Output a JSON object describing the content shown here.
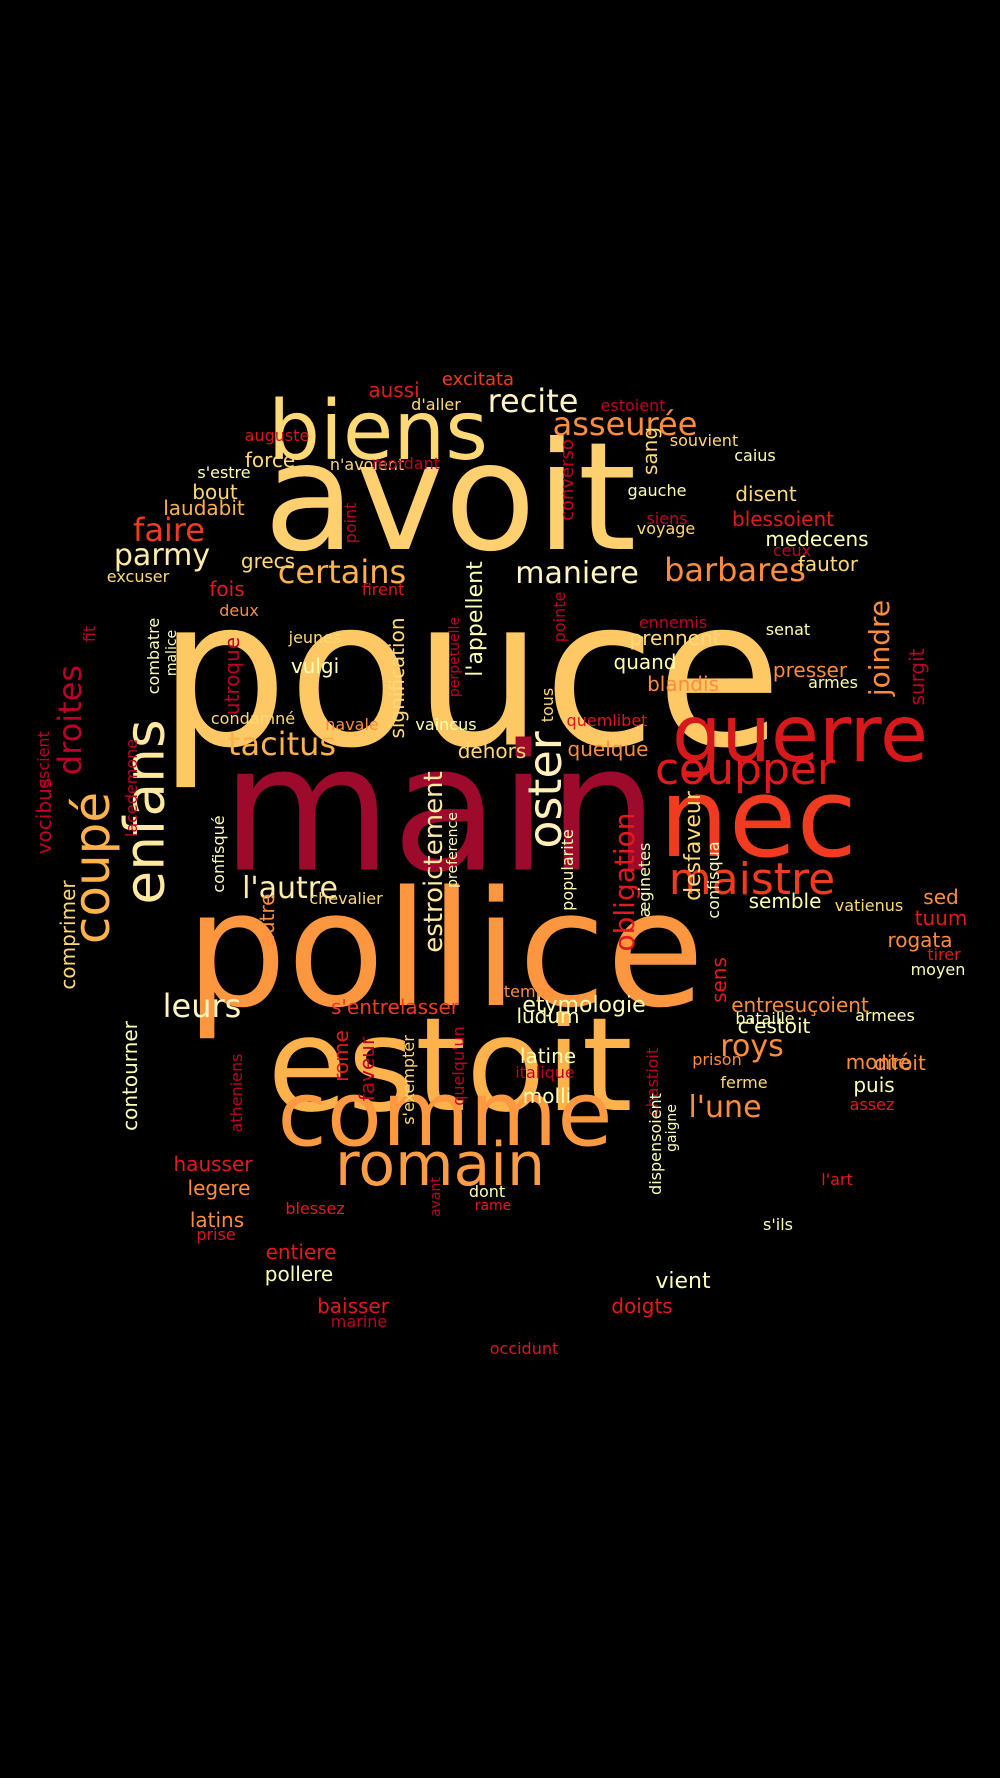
{
  "palette": {
    "dark_red": "#9e0a2b",
    "red": "#d7191c",
    "orange_red": "#f03b20",
    "orange": "#fd8d3c",
    "light_orange": "#feb24c",
    "yellow": "#fed976",
    "pale": "#ffffb2"
  },
  "words": [
    {
      "text": "pouce",
      "color": "#fec965"
    },
    {
      "text": "main",
      "color": "#9e0a2b"
    },
    {
      "text": "pollice",
      "color": "#fd973f"
    },
    {
      "text": "avoit",
      "color": "#fed06f"
    },
    {
      "text": "estoit",
      "color": "#feb24c"
    },
    {
      "text": "comme",
      "color": "#fd9a41"
    },
    {
      "text": "biens",
      "color": "#fed976"
    },
    {
      "text": "nec",
      "color": "#f03b20"
    },
    {
      "text": "guerre",
      "color": "#d7191c"
    },
    {
      "text": "romain",
      "color": "#fd9d43"
    },
    {
      "text": "enfans",
      "color": "#ffe8a0"
    },
    {
      "text": "coupper",
      "color": "#e31a1c"
    },
    {
      "text": "coupé",
      "color": "#feb24c"
    },
    {
      "text": "maistre",
      "color": "#f03b20"
    },
    {
      "text": "oster",
      "color": "#fff1b8"
    },
    {
      "text": "certains",
      "color": "#feb24c"
    },
    {
      "text": "barbares",
      "color": "#fd8d3c"
    },
    {
      "text": "maniere",
      "color": "#fff5c0"
    },
    {
      "text": "tacitus",
      "color": "#feb24c"
    },
    {
      "text": "l'autre",
      "color": "#ffecaa"
    },
    {
      "text": "leurs",
      "color": "#fff5c0"
    },
    {
      "text": "faire",
      "color": "#f03b20"
    },
    {
      "text": "parmy",
      "color": "#ffecaa"
    },
    {
      "text": "recite",
      "color": "#fff5c0"
    },
    {
      "text": "asseurée",
      "color": "#fd8d3c"
    },
    {
      "text": "droites",
      "color": "#bd0026"
    },
    {
      "text": "estroictement",
      "color": "#ffe8a0"
    },
    {
      "text": "obligation",
      "color": "#e31a1c"
    },
    {
      "text": "joindre",
      "color": "#fd8d3c"
    },
    {
      "text": "l'une",
      "color": "#fd8d3c"
    },
    {
      "text": "roys",
      "color": "#fd8d3c"
    },
    {
      "text": "desfaveur",
      "color": "#fed976"
    },
    {
      "text": "signification",
      "color": "#fed976"
    },
    {
      "text": "l'appellent",
      "color": "#ffffb2"
    },
    {
      "text": "etymologie",
      "color": "#ffffb2"
    },
    {
      "text": "s'entrelasser",
      "color": "#f03b20"
    },
    {
      "text": "entresuçoient",
      "color": "#fd8d3c"
    },
    {
      "text": "c'estoit",
      "color": "#ffffb2"
    },
    {
      "text": "excitata",
      "color": "#f03b20"
    },
    {
      "text": "aussi",
      "color": "#e31a1c"
    },
    {
      "text": "d'aller",
      "color": "#fed976"
    },
    {
      "text": "estoient",
      "color": "#bd0026"
    },
    {
      "text": "auguste",
      "color": "#d7191c"
    },
    {
      "text": "souvient",
      "color": "#fed976"
    },
    {
      "text": "force",
      "color": "#fed976"
    },
    {
      "text": "n'avoient",
      "color": "#fed976"
    },
    {
      "text": "mordant",
      "color": "#bd0026"
    },
    {
      "text": "caius",
      "color": "#ffffb2"
    },
    {
      "text": "s'estre",
      "color": "#ffffb2"
    },
    {
      "text": "converso",
      "color": "#bd0026"
    },
    {
      "text": "sang",
      "color": "#fed976"
    },
    {
      "text": "bout",
      "color": "#fed976"
    },
    {
      "text": "gauche",
      "color": "#ffffb2"
    },
    {
      "text": "disent",
      "color": "#fed976"
    },
    {
      "text": "laudabit",
      "color": "#feb24c"
    },
    {
      "text": "siens",
      "color": "#bd0026"
    },
    {
      "text": "blessoient",
      "color": "#e31a1c"
    },
    {
      "text": "voyage",
      "color": "#fed976"
    },
    {
      "text": "medecens",
      "color": "#ffffb2"
    },
    {
      "text": "point",
      "color": "#bd0026"
    },
    {
      "text": "ceux",
      "color": "#bd0026"
    },
    {
      "text": "grecs",
      "color": "#fed976"
    },
    {
      "text": "fautor",
      "color": "#fed976"
    },
    {
      "text": "excuser",
      "color": "#fed976"
    },
    {
      "text": "fois",
      "color": "#e31a1c"
    },
    {
      "text": "firent",
      "color": "#d7191c"
    },
    {
      "text": "pointe",
      "color": "#bd0026"
    },
    {
      "text": "deux",
      "color": "#fd8d3c"
    },
    {
      "text": "perpetuelle",
      "color": "#bd0026"
    },
    {
      "text": "ennemis",
      "color": "#bd0026"
    },
    {
      "text": "senat",
      "color": "#ffffb2"
    },
    {
      "text": "fit",
      "color": "#bd0026"
    },
    {
      "text": "combatre",
      "color": "#ffffb2"
    },
    {
      "text": "malice",
      "color": "#ffffb2"
    },
    {
      "text": "jeunes",
      "color": "#fed976"
    },
    {
      "text": "prennent",
      "color": "#fed976"
    },
    {
      "text": "utroque",
      "color": "#bd0026"
    },
    {
      "text": "vulgi",
      "color": "#ffffb2"
    },
    {
      "text": "quand",
      "color": "#ffffb2"
    },
    {
      "text": "presser",
      "color": "#fd8d3c"
    },
    {
      "text": "armes",
      "color": "#ffffb2"
    },
    {
      "text": "surgit",
      "color": "#bd0026"
    },
    {
      "text": "blandis",
      "color": "#fd8d3c"
    },
    {
      "text": "condamné",
      "color": "#fed976"
    },
    {
      "text": "navale",
      "color": "#fd8d3c"
    },
    {
      "text": "vaincus",
      "color": "#ffffb2"
    },
    {
      "text": "tous",
      "color": "#fed976"
    },
    {
      "text": "quemlibet",
      "color": "#d7191c"
    },
    {
      "text": "vocibus",
      "color": "#bd0026"
    },
    {
      "text": "escient",
      "color": "#bd0026"
    },
    {
      "text": "lacedemone",
      "color": "#bd0026"
    },
    {
      "text": "dehors",
      "color": "#fed976"
    },
    {
      "text": "quelque",
      "color": "#fd8d3c"
    },
    {
      "text": "chevalier",
      "color": "#fed976"
    },
    {
      "text": "preference",
      "color": "#ffffb2"
    },
    {
      "text": "semble",
      "color": "#ffffb2"
    },
    {
      "text": "vatienus",
      "color": "#fed976"
    },
    {
      "text": "sed",
      "color": "#fd8d3c"
    },
    {
      "text": "tuum",
      "color": "#e31a1c"
    },
    {
      "text": "confisqué",
      "color": "#ffffb2"
    },
    {
      "text": "autre",
      "color": "#fd8d3c"
    },
    {
      "text": "popularite",
      "color": "#ffffb2"
    },
    {
      "text": "æginetes",
      "color": "#ffffb2"
    },
    {
      "text": "confisqua",
      "color": "#ffffb2"
    },
    {
      "text": "rogata",
      "color": "#fd8d3c"
    },
    {
      "text": "tirer",
      "color": "#e31a1c"
    },
    {
      "text": "moyen",
      "color": "#ffffb2"
    },
    {
      "text": "comprimer",
      "color": "#fed976"
    },
    {
      "text": "temps",
      "color": "#fd8d3c"
    },
    {
      "text": "sens",
      "color": "#e31a1c"
    },
    {
      "text": "ludum",
      "color": "#ffffb2"
    },
    {
      "text": "bataille",
      "color": "#ffffb2"
    },
    {
      "text": "armees",
      "color": "#ffffb2"
    },
    {
      "text": "monté",
      "color": "#fd8d3c"
    },
    {
      "text": "contourner",
      "color": "#ffffb2"
    },
    {
      "text": "atheniens",
      "color": "#bd0026"
    },
    {
      "text": "faveur",
      "color": "#bd0026"
    },
    {
      "text": "rome",
      "color": "#e31a1c"
    },
    {
      "text": "s'exempter",
      "color": "#fed976"
    },
    {
      "text": "quelqu'un",
      "color": "#bd0026"
    },
    {
      "text": "latine",
      "color": "#ffffb2"
    },
    {
      "text": "italique",
      "color": "#bd0026"
    },
    {
      "text": "chastioit",
      "color": "#bd0026"
    },
    {
      "text": "prison",
      "color": "#fd8d3c"
    },
    {
      "text": "diroit",
      "color": "#fd8d3c"
    },
    {
      "text": "molli",
      "color": "#ffffb2"
    },
    {
      "text": "ferme",
      "color": "#fed976"
    },
    {
      "text": "puis",
      "color": "#ffffb2"
    },
    {
      "text": "assez",
      "color": "#e31a1c"
    },
    {
      "text": "hausser",
      "color": "#e31a1c"
    },
    {
      "text": "dispensoient",
      "color": "#ffffb2"
    },
    {
      "text": "gaigne",
      "color": "#ffffb2"
    },
    {
      "text": "l'art",
      "color": "#e31a1c"
    },
    {
      "text": "legere",
      "color": "#fd8d3c"
    },
    {
      "text": "avant",
      "color": "#bd0026"
    },
    {
      "text": "dont",
      "color": "#ffffb2"
    },
    {
      "text": "rame",
      "color": "#e31a1c"
    },
    {
      "text": "blessez",
      "color": "#e31a1c"
    },
    {
      "text": "latins",
      "color": "#fd8d3c"
    },
    {
      "text": "s'ils",
      "color": "#ffffb2"
    },
    {
      "text": "prise",
      "color": "#d7191c"
    },
    {
      "text": "entiere",
      "color": "#e31a1c"
    },
    {
      "text": "pollere",
      "color": "#ffffb2"
    },
    {
      "text": "vient",
      "color": "#ffffb2"
    },
    {
      "text": "baisser",
      "color": "#e31a1c"
    },
    {
      "text": "doigts",
      "color": "#e31a1c"
    },
    {
      "text": "marine",
      "color": "#bd0026"
    },
    {
      "text": "occidunt",
      "color": "#d7191c"
    }
  ]
}
